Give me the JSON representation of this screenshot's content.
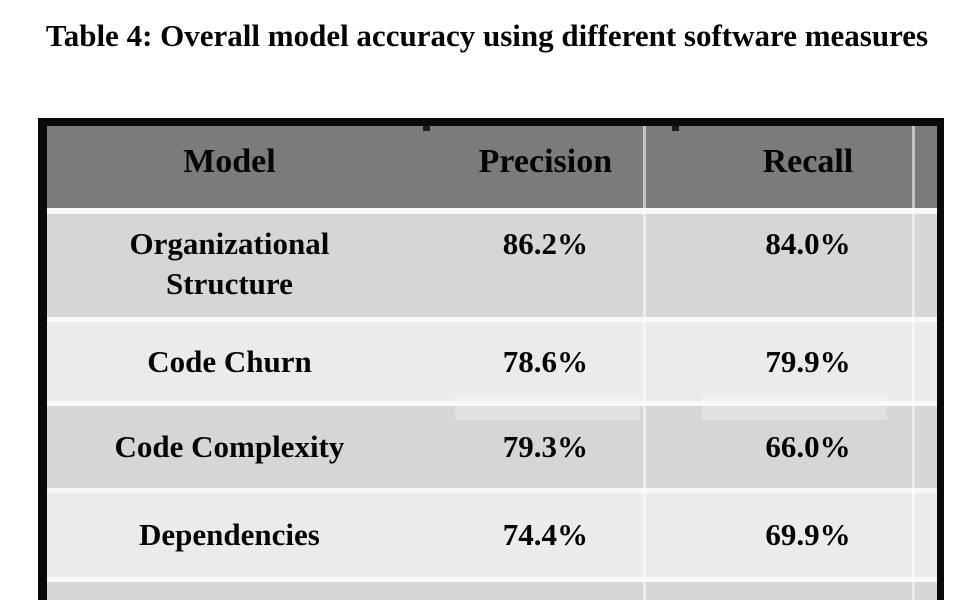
{
  "chart_data": {
    "type": "table",
    "title": "Table 4: Overall model accuracy using different software measures",
    "columns": [
      "Model",
      "Precision",
      "Recall"
    ],
    "rows": [
      [
        "Organizational Structure",
        "86.2%",
        "84.0%"
      ],
      [
        "Code Churn",
        "78.6%",
        "79.9%"
      ],
      [
        "Code Complexity",
        "79.3%",
        "66.0%"
      ],
      [
        "Dependencies",
        "74.4%",
        "69.9%"
      ]
    ]
  },
  "colors": {
    "page-bg": "#ffffff",
    "text": "#050505",
    "border": "#0a0a0a",
    "header-bg": "#7b7b7b",
    "row-dark": "#d6d6d6",
    "row-light": "#ebebeb",
    "gap": "#f8f8f8"
  }
}
